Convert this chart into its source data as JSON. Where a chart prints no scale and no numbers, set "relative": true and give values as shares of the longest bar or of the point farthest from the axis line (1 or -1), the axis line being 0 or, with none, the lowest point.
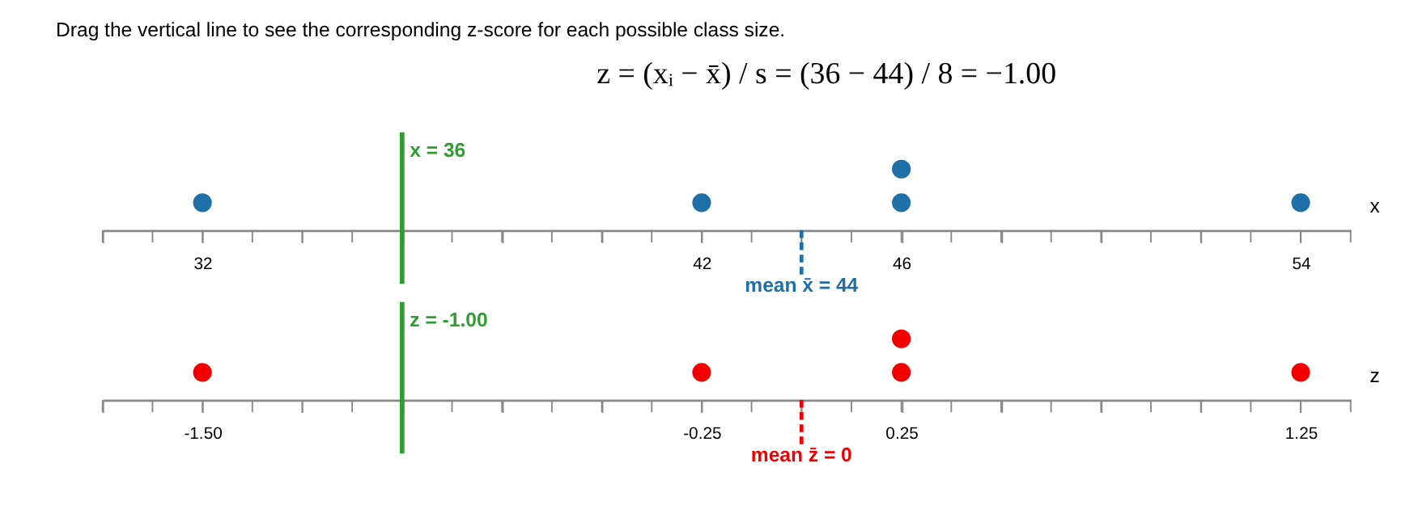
{
  "chart_data": [
    {
      "type": "scatter",
      "title": "Drag the vertical line to see the corresponding z-score for each possible class size.",
      "annotations": [
        "z = (xᵢ − x̄) / s = (36 − 44) / 8 = −1.00"
      ],
      "relative": true,
      "xlabel": "x",
      "marker": "circle",
      "grid": false,
      "x": [
        32,
        42,
        46,
        46,
        54
      ],
      "series": [
        {
          "color": "#1f6fa8",
          "values": [
            0.45,
            0.45,
            0.45,
            1,
            0.45
          ]
        }
      ],
      "xlim": [
        30,
        55
      ],
      "xticks": [
        {
          "value": 30,
          "label": null
        },
        {
          "value": 31,
          "label": null
        },
        32,
        {
          "value": 33,
          "label": null
        },
        {
          "value": 34,
          "label": null
        },
        {
          "value": 35,
          "label": null
        },
        {
          "value": 36,
          "label": null
        },
        {
          "value": 37,
          "label": null
        },
        {
          "value": 38,
          "label": null
        },
        {
          "value": 39,
          "label": null
        },
        {
          "value": 40,
          "label": null
        },
        {
          "value": 41,
          "label": null
        },
        42,
        {
          "value": 43,
          "label": null
        },
        {
          "value": 44,
          "label": null
        },
        {
          "value": 45,
          "label": null
        },
        46,
        {
          "value": 47,
          "label": null
        },
        {
          "value": 48,
          "label": null
        },
        {
          "value": 49,
          "label": null
        },
        {
          "value": 50,
          "label": null
        },
        {
          "value": 51,
          "label": null
        },
        {
          "value": 52,
          "label": null
        },
        {
          "value": 53,
          "label": null
        },
        54,
        {
          "value": 55,
          "label": null
        }
      ],
      "ref_lines": [
        {
          "axis": "x",
          "value": 36,
          "label": "x = 36",
          "color": "#2e9e2e",
          "line_style": "solid"
        },
        {
          "axis": "x",
          "value": 44,
          "label": "mean x̄ = 44",
          "color": "#1f6fa8",
          "line_style": "dashed"
        }
      ]
    },
    {
      "type": "scatter",
      "relative": true,
      "xlabel": "z",
      "marker": "circle",
      "grid": false,
      "x": [
        -1.5,
        -0.25,
        0.25,
        0.25,
        1.25
      ],
      "series": [
        {
          "color": "#f00000",
          "values": [
            0.45,
            0.45,
            0.45,
            1,
            0.45
          ]
        }
      ],
      "xlim": [
        -1.75,
        1.375
      ],
      "xticks": [
        {
          "value": -1.75,
          "label": null
        },
        {
          "value": -1.625,
          "label": null
        },
        {
          "value": -1.5,
          "label": "-1.50"
        },
        {
          "value": -1.375,
          "label": null
        },
        {
          "value": -1.25,
          "label": null
        },
        {
          "value": -1.125,
          "label": null
        },
        {
          "value": -1,
          "label": null
        },
        {
          "value": -0.875,
          "label": null
        },
        {
          "value": -0.75,
          "label": null
        },
        {
          "value": -0.625,
          "label": null
        },
        {
          "value": -0.5,
          "label": null
        },
        {
          "value": -0.375,
          "label": null
        },
        {
          "value": -0.25,
          "label": "-0.25"
        },
        {
          "value": -0.125,
          "label": null
        },
        {
          "value": 0,
          "label": null
        },
        {
          "value": 0.125,
          "label": null
        },
        0.25,
        {
          "value": 0.375,
          "label": null
        },
        {
          "value": 0.5,
          "label": null
        },
        {
          "value": 0.625,
          "label": null
        },
        {
          "value": 0.75,
          "label": null
        },
        {
          "value": 0.875,
          "label": null
        },
        {
          "value": 1,
          "label": null
        },
        {
          "value": 1.125,
          "label": null
        },
        1.25,
        {
          "value": 1.375,
          "label": null
        }
      ],
      "ref_lines": [
        {
          "axis": "x",
          "value": -1,
          "label": "z = -1.00",
          "color": "#2e9e2e",
          "line_style": "solid"
        },
        {
          "axis": "x",
          "value": 0,
          "label": "mean z̄ = 0",
          "color": "#f00000",
          "line_style": "dashed"
        }
      ]
    }
  ]
}
